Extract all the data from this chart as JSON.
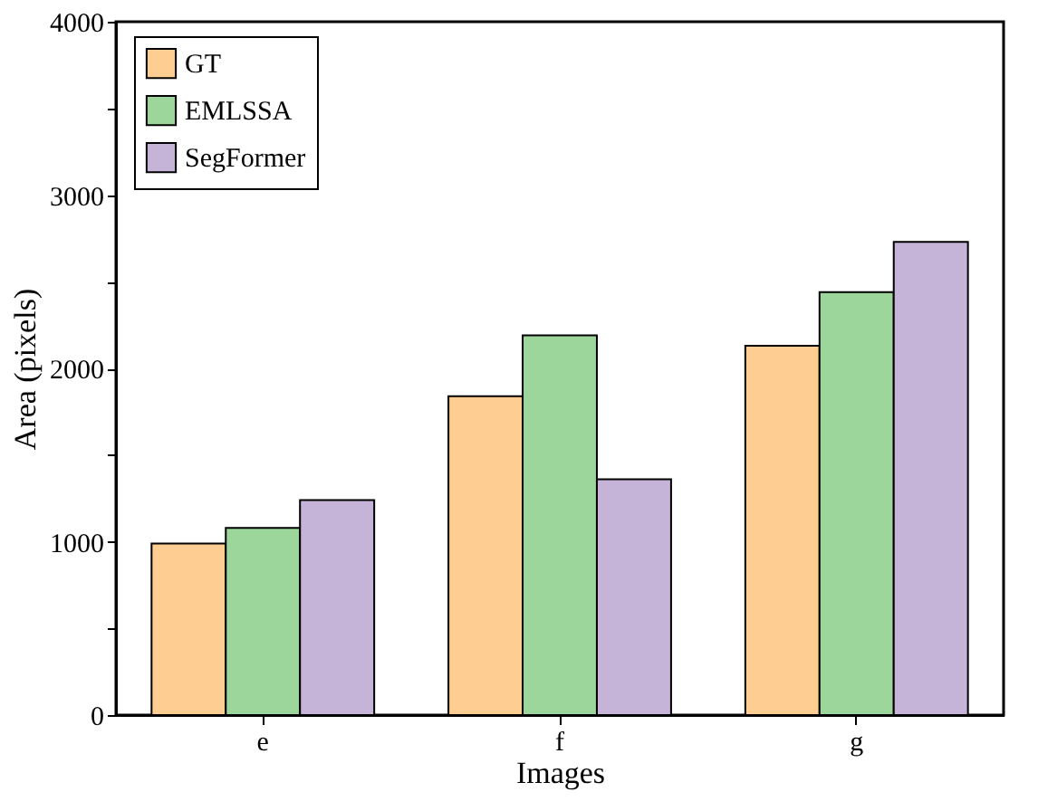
{
  "chart_data": {
    "type": "bar",
    "xlabel": "Images",
    "ylabel": "Area (pixels)",
    "categories": [
      "e",
      "f",
      "g"
    ],
    "series": [
      {
        "name": "GT",
        "color": "#fdcd92",
        "values": [
          990,
          1840,
          2130
        ]
      },
      {
        "name": "EMLSSA",
        "color": "#9dd69b",
        "values": [
          1080,
          2190,
          2440
        ]
      },
      {
        "name": "SegFormer",
        "color": "#c5b4d8",
        "values": [
          1240,
          1360,
          2730
        ]
      }
    ],
    "ylim": [
      0,
      4000
    ],
    "yticks": [
      0,
      {
        "value": 500,
        "label": null
      },
      1000,
      {
        "value": 1500,
        "label": null
      },
      2000,
      {
        "value": 2500,
        "label": null
      },
      3000,
      {
        "value": 3500,
        "label": null
      },
      4000
    ],
    "grid": false,
    "legend": "top left"
  }
}
